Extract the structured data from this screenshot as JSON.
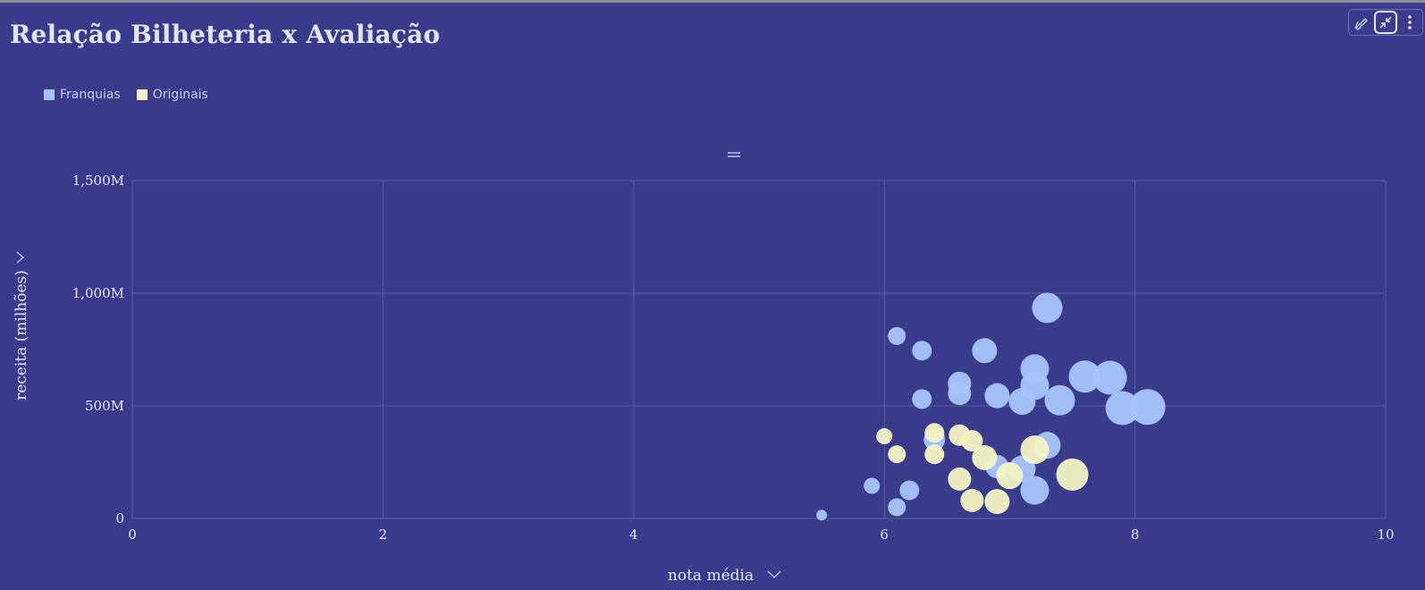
{
  "header": {
    "title": "Relação Bilheteria x Avaliação"
  },
  "toolbar": {
    "buttons": [
      {
        "name": "edit-chart-icon"
      },
      {
        "name": "collapse-icon"
      },
      {
        "name": "more-options-icon"
      }
    ]
  },
  "colors": {
    "background": "#3a3b8c",
    "franquias": "#a5c4fb",
    "originais": "#f2f3c4",
    "grid": "#5a5ca6"
  },
  "chart_data": {
    "type": "scatter",
    "title": "",
    "xlabel": "nota média",
    "ylabel": "receita (milhões)",
    "xlim": [
      0,
      10
    ],
    "ylim": [
      0,
      1500
    ],
    "x_ticks": [
      "0",
      "2",
      "4",
      "6",
      "8",
      "10"
    ],
    "y_ticks": [
      "0",
      "500M",
      "1,000M",
      "1,500M"
    ],
    "grid": true,
    "legend_position": "top-left",
    "series": [
      {
        "name": "Franquias",
        "color": "#a5c4fb",
        "points": [
          {
            "x": 5.5,
            "y": 15,
            "size": 12
          },
          {
            "x": 5.9,
            "y": 145,
            "size": 18
          },
          {
            "x": 6.1,
            "y": 50,
            "size": 20
          },
          {
            "x": 6.2,
            "y": 125,
            "size": 22
          },
          {
            "x": 6.1,
            "y": 810,
            "size": 20
          },
          {
            "x": 6.3,
            "y": 745,
            "size": 22
          },
          {
            "x": 6.3,
            "y": 530,
            "size": 22
          },
          {
            "x": 6.4,
            "y": 350,
            "size": 24
          },
          {
            "x": 6.6,
            "y": 600,
            "size": 26
          },
          {
            "x": 6.6,
            "y": 555,
            "size": 26
          },
          {
            "x": 6.8,
            "y": 745,
            "size": 28
          },
          {
            "x": 6.9,
            "y": 545,
            "size": 28
          },
          {
            "x": 6.9,
            "y": 230,
            "size": 26
          },
          {
            "x": 7.1,
            "y": 520,
            "size": 30
          },
          {
            "x": 7.2,
            "y": 665,
            "size": 32
          },
          {
            "x": 7.2,
            "y": 590,
            "size": 32
          },
          {
            "x": 7.3,
            "y": 935,
            "size": 34
          },
          {
            "x": 7.3,
            "y": 325,
            "size": 30
          },
          {
            "x": 7.2,
            "y": 125,
            "size": 32
          },
          {
            "x": 7.1,
            "y": 220,
            "size": 30
          },
          {
            "x": 7.4,
            "y": 525,
            "size": 34
          },
          {
            "x": 7.6,
            "y": 630,
            "size": 36
          },
          {
            "x": 7.8,
            "y": 625,
            "size": 38
          },
          {
            "x": 7.9,
            "y": 490,
            "size": 38
          },
          {
            "x": 8.1,
            "y": 495,
            "size": 40
          }
        ]
      },
      {
        "name": "Originais",
        "color": "#f2f3c4",
        "points": [
          {
            "x": 6.0,
            "y": 365,
            "size": 18
          },
          {
            "x": 6.1,
            "y": 285,
            "size": 20
          },
          {
            "x": 6.4,
            "y": 380,
            "size": 22
          },
          {
            "x": 6.4,
            "y": 285,
            "size": 22
          },
          {
            "x": 6.6,
            "y": 370,
            "size": 24
          },
          {
            "x": 6.7,
            "y": 345,
            "size": 24
          },
          {
            "x": 6.6,
            "y": 175,
            "size": 26
          },
          {
            "x": 6.8,
            "y": 270,
            "size": 28
          },
          {
            "x": 6.7,
            "y": 80,
            "size": 26
          },
          {
            "x": 6.9,
            "y": 75,
            "size": 28
          },
          {
            "x": 7.0,
            "y": 190,
            "size": 30
          },
          {
            "x": 7.2,
            "y": 305,
            "size": 32
          },
          {
            "x": 7.5,
            "y": 195,
            "size": 36
          }
        ]
      }
    ]
  }
}
